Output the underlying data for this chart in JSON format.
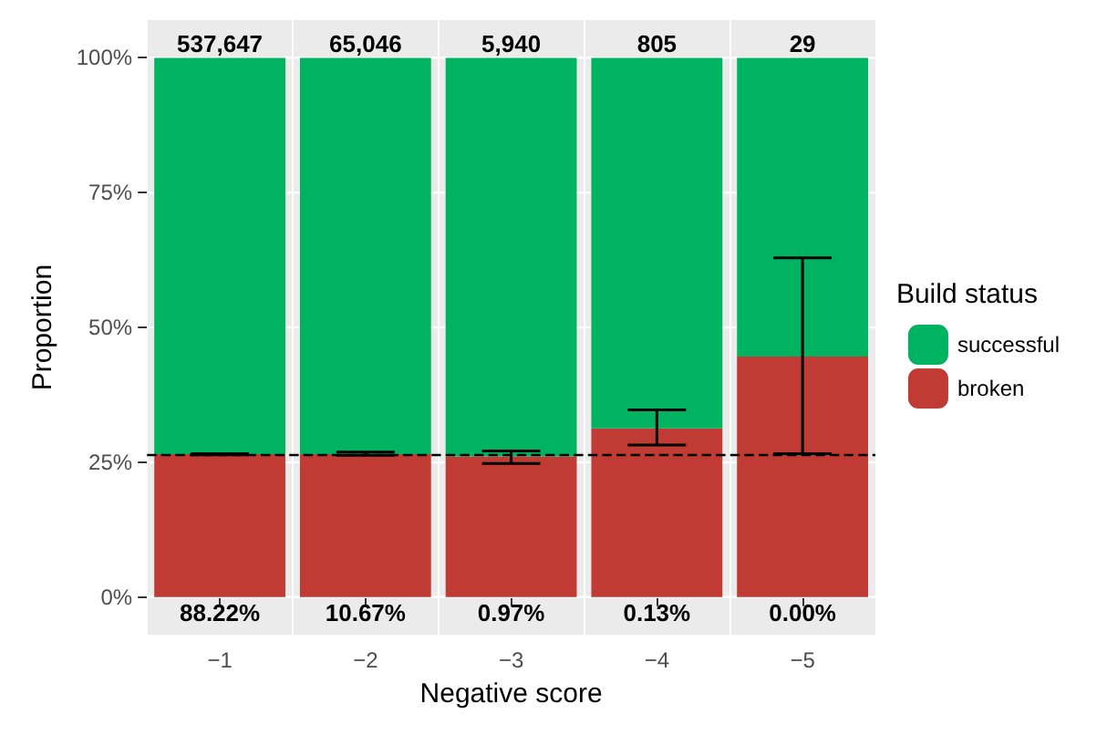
{
  "chart_data": {
    "type": "bar",
    "stacked": true,
    "xlabel": "Negative score",
    "ylabel": "Proportion",
    "legend_title": "Build status",
    "legend": "right",
    "grid": true,
    "categories": [
      "−1",
      "−2",
      "−3",
      "−4",
      "−5"
    ],
    "series": [
      {
        "name": "broken",
        "color": "#bf3b33",
        "values": [
          26.5,
          26.5,
          26.1,
          31.3,
          44.6
        ],
        "errors": [
          [
            26.4,
            26.6
          ],
          [
            26.3,
            26.9
          ],
          [
            24.8,
            27.1
          ],
          [
            28.2,
            34.7
          ],
          [
            26.6,
            62.9
          ]
        ]
      },
      {
        "name": "successful",
        "color": "#00b360",
        "values": [
          73.5,
          73.5,
          73.9,
          68.7,
          55.4
        ]
      }
    ],
    "ylim": [
      -7,
      107
    ],
    "yticks": [
      {
        "value": 0,
        "label": "0%"
      },
      {
        "value": 25,
        "label": "25%"
      },
      {
        "value": 50,
        "label": "50%"
      },
      {
        "value": 75,
        "label": "75%"
      },
      {
        "value": 100,
        "label": "100%"
      }
    ],
    "ref_lines": [
      {
        "axis": "y",
        "value": 26.5,
        "color": "#000000",
        "line_style": "dashed"
      }
    ],
    "annotations": [
      {
        "text": "537,647",
        "x": "−1",
        "y": 100
      },
      {
        "text": "65,046",
        "x": "−2",
        "y": 100
      },
      {
        "text": "5,940",
        "x": "−3",
        "y": 100
      },
      {
        "text": "805",
        "x": "−4",
        "y": 100
      },
      {
        "text": "29",
        "x": "−5",
        "y": 100
      },
      {
        "text": "88.22%",
        "x": "−1",
        "y": 0
      },
      {
        "text": "10.67%",
        "x": "−2",
        "y": 0
      },
      {
        "text": "0.97%",
        "x": "−3",
        "y": 0
      },
      {
        "text": "0.13%",
        "x": "−4",
        "y": 0
      },
      {
        "text": "0.00%",
        "x": "−5",
        "y": 0
      }
    ]
  }
}
